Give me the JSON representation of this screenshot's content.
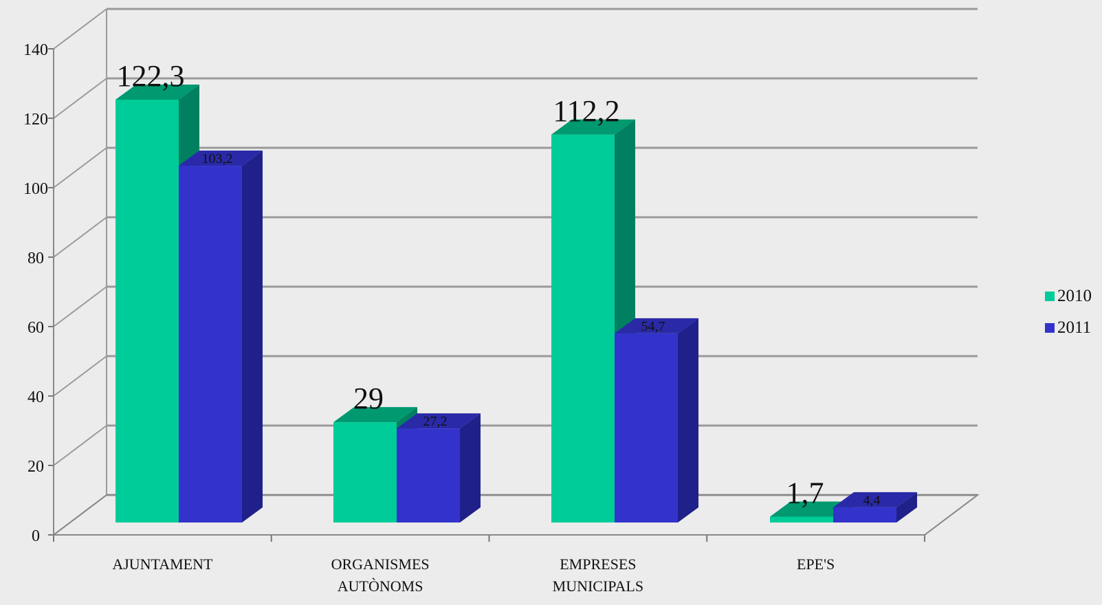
{
  "chart_data": {
    "type": "bar",
    "categories": [
      "AJUNTAMENT",
      "ORGANISMES AUTÒNOMS",
      "EMPRESES MUNICIPALS",
      "EPE'S"
    ],
    "category_lines": [
      [
        "AJUNTAMENT"
      ],
      [
        "ORGANISMES",
        "AUTÒNOMS"
      ],
      [
        "EMPRESES",
        "MUNICIPALS"
      ],
      [
        "EPE'S"
      ]
    ],
    "series": [
      {
        "name": "2010",
        "values": [
          122.3,
          29,
          112.2,
          1.7
        ],
        "labels": [
          "122,3",
          "29",
          "112,2",
          "1,7"
        ],
        "color": "#00cc99",
        "top_color": "#009970",
        "side_color": "#008060"
      },
      {
        "name": "2011",
        "values": [
          103.2,
          27.2,
          54.7,
          4.4
        ],
        "labels": [
          "103,2",
          "27,2",
          "54,7",
          "4,4"
        ],
        "color": "#3333cc",
        "top_color": "#2a2aa8",
        "side_color": "#20208a"
      }
    ],
    "yticks": [
      "0",
      "20",
      "40",
      "60",
      "80",
      "100",
      "120",
      "140"
    ],
    "ylim": [
      0,
      140
    ],
    "grid": true,
    "legend_position": "right",
    "title": "",
    "xlabel": "",
    "ylabel": ""
  }
}
